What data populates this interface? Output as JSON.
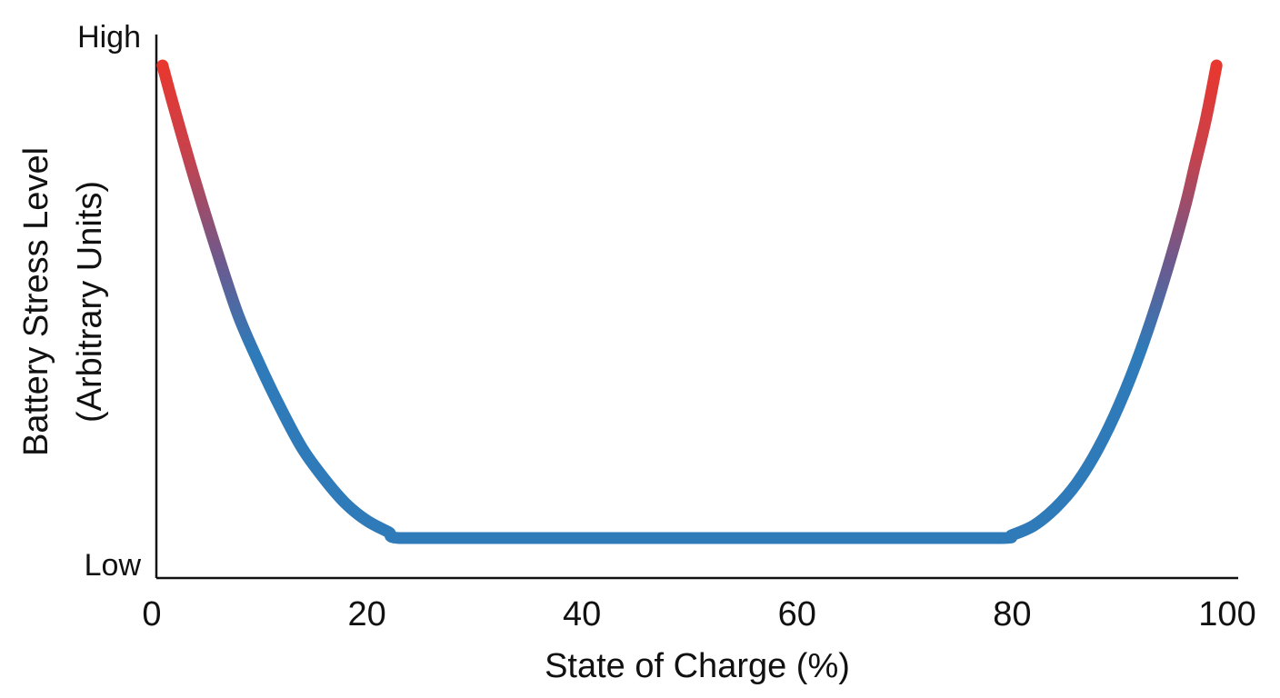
{
  "chart_data": {
    "type": "line",
    "title": "",
    "xlabel": "State of Charge (%)",
    "ylabel_line1": "Battery Stress Level",
    "ylabel_line2": "(Arbitrary Units)",
    "xlim": [
      0,
      100
    ],
    "ylim": [
      0,
      1
    ],
    "x_ticks": [
      0,
      20,
      40,
      60,
      80,
      100
    ],
    "x_tick_labels": [
      "0",
      "20",
      "40",
      "60",
      "80",
      "100"
    ],
    "y_level_labels": {
      "high": "High",
      "low": "Low"
    },
    "grid": false,
    "legend": "none",
    "series": [
      {
        "x": [
          1,
          2,
          4,
          6,
          8,
          10,
          12,
          14,
          16,
          18,
          20,
          22,
          23,
          30,
          40,
          50,
          60,
          70,
          79,
          80,
          82,
          84,
          86,
          88,
          90,
          92,
          94,
          96,
          97,
          98,
          99
        ],
        "y": [
          0.95,
          0.87,
          0.72,
          0.58,
          0.45,
          0.35,
          0.26,
          0.18,
          0.12,
          0.07,
          0.035,
          0.012,
          0.0,
          0.0,
          0.0,
          0.0,
          0.0,
          0.0,
          0.0,
          0.006,
          0.025,
          0.06,
          0.11,
          0.18,
          0.27,
          0.38,
          0.51,
          0.66,
          0.75,
          0.84,
          0.95
        ]
      }
    ],
    "colors": {
      "low_stress": "#2f7ab8",
      "high_stress": "#e8372f"
    }
  }
}
